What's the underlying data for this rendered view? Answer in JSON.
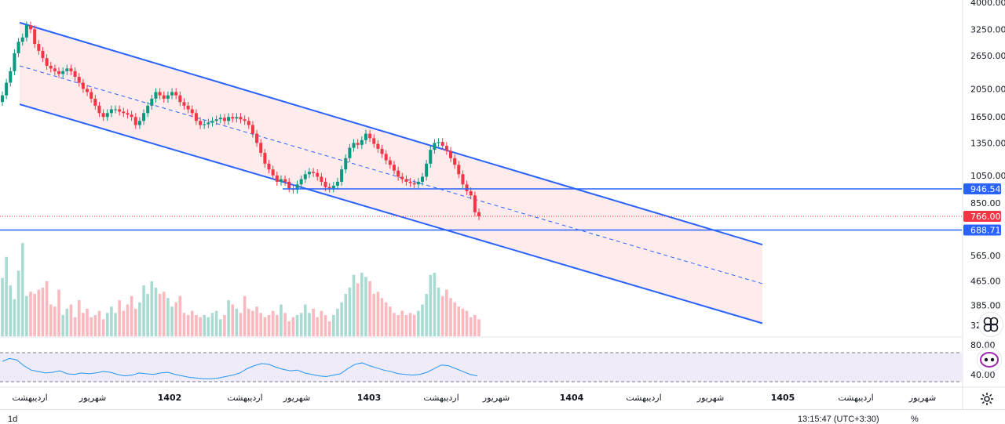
{
  "chart_data": {
    "type": "candlestick",
    "price_axis": {
      "ticks": [
        "4000.00",
        "3250.00",
        "2650.00",
        "2050.00",
        "1650.00",
        "1350.00",
        "1050.00",
        "850.00",
        "565.00",
        "465.00",
        "385.00",
        "32"
      ],
      "scale": "log"
    },
    "price_badges": [
      {
        "label": "946.54",
        "color": "#2962ff"
      },
      {
        "label": "766.00",
        "color": "#f23645"
      },
      {
        "label": "688.71",
        "color": "#2962ff"
      }
    ],
    "horizontal_lines": [
      946.54,
      688.71
    ],
    "last_price": 766.0,
    "channel": {
      "upper": {
        "start_price": 3420,
        "end_price": 615
      },
      "lower": {
        "start_price": 1820,
        "end_price": 335
      },
      "mid": {
        "start_price": 2450,
        "end_price": 455
      }
    },
    "time_axis": [
      {
        "label": "اردیبهشت",
        "year": false
      },
      {
        "label": "شهریور",
        "year": false
      },
      {
        "label": "1402",
        "year": true
      },
      {
        "label": "اردیبهشت",
        "year": false
      },
      {
        "label": "شهریور",
        "year": false
      },
      {
        "label": "1403",
        "year": true
      },
      {
        "label": "اردیبهشت",
        "year": false
      },
      {
        "label": "شهریور",
        "year": false
      },
      {
        "label": "1404",
        "year": true
      },
      {
        "label": "اردیبهشت",
        "year": false
      },
      {
        "label": "شهریور",
        "year": false
      },
      {
        "label": "1405",
        "year": true
      },
      {
        "label": "اردیبهشت",
        "year": false
      },
      {
        "label": "شهریور",
        "year": false
      }
    ],
    "rsi_axis": [
      "80.00",
      "40.00"
    ],
    "candles_close": [
      1950,
      2150,
      2350,
      2700,
      2950,
      3050,
      3350,
      3250,
      2900,
      2750,
      2600,
      2450,
      2400,
      2350,
      2300,
      2350,
      2400,
      2350,
      2250,
      2150,
      2050,
      2000,
      1900,
      1800,
      1700,
      1650,
      1700,
      1750,
      1750,
      1720,
      1700,
      1680,
      1650,
      1550,
      1600,
      1700,
      1800,
      1900,
      2000,
      1950,
      1900,
      1950,
      2000,
      1950,
      1850,
      1800,
      1750,
      1700,
      1600,
      1550,
      1560,
      1580,
      1600,
      1620,
      1640,
      1600,
      1650,
      1630,
      1650,
      1620,
      1600,
      1550,
      1450,
      1350,
      1250,
      1150,
      1100,
      1050,
      1000,
      1020,
      1000,
      950,
      940,
      980,
      1020,
      1060,
      1080,
      1070,
      1040,
      1000,
      960,
      950,
      970,
      1000,
      1100,
      1200,
      1300,
      1350,
      1330,
      1380,
      1450,
      1400,
      1340,
      1290,
      1240,
      1180,
      1140,
      1090,
      1040,
      1020,
      1000,
      990,
      980,
      1000,
      1040,
      1150,
      1280,
      1350,
      1360,
      1320,
      1270,
      1200,
      1140,
      1060,
      980,
      930,
      900,
      790,
      766
    ],
    "volume": [
      55,
      75,
      48,
      35,
      62,
      88,
      38,
      42,
      40,
      44,
      46,
      52,
      30,
      28,
      44,
      20,
      26,
      30,
      18,
      34,
      22,
      26,
      18,
      20,
      24,
      16,
      22,
      28,
      22,
      34,
      24,
      30,
      38,
      26,
      32,
      48,
      40,
      52,
      46,
      40,
      42,
      36,
      28,
      32,
      38,
      22,
      20,
      24,
      20,
      18,
      20,
      18,
      22,
      24,
      16,
      20,
      34,
      30,
      26,
      22,
      38,
      26,
      24,
      28,
      22,
      18,
      20,
      24,
      20,
      30,
      22,
      14,
      18,
      20,
      22,
      30,
      22,
      26,
      18,
      24,
      20,
      14,
      20,
      26,
      32,
      40,
      46,
      58,
      50,
      60,
      56,
      52,
      40,
      42,
      36,
      32,
      28,
      22,
      20,
      24,
      20,
      22,
      20,
      24,
      30,
      40,
      58,
      60,
      46,
      38,
      44,
      36,
      32,
      28,
      26,
      24,
      18,
      20,
      16
    ],
    "rsi": [
      58,
      62,
      60,
      52,
      46,
      44,
      42,
      43,
      45,
      41,
      40,
      42,
      41,
      42,
      44,
      43,
      40,
      38,
      39,
      42,
      41,
      40,
      42,
      43,
      40,
      38,
      36,
      35,
      34,
      34,
      35,
      37,
      39,
      42,
      48,
      52,
      55,
      54,
      50,
      47,
      45,
      46,
      42,
      40,
      38,
      37,
      39,
      41,
      48,
      54,
      56,
      52,
      49,
      46,
      44,
      41,
      40,
      39,
      40,
      43,
      48,
      53,
      52,
      48,
      44,
      40,
      38
    ]
  },
  "status_bar": {
    "interval": "1d",
    "clock": "13:15:47 (UTC+3:30)",
    "percent": "%"
  },
  "icons": {
    "settings": "gear-icon",
    "rsi_toggle": "eye-icon",
    "zoom": "zoom-icon"
  }
}
